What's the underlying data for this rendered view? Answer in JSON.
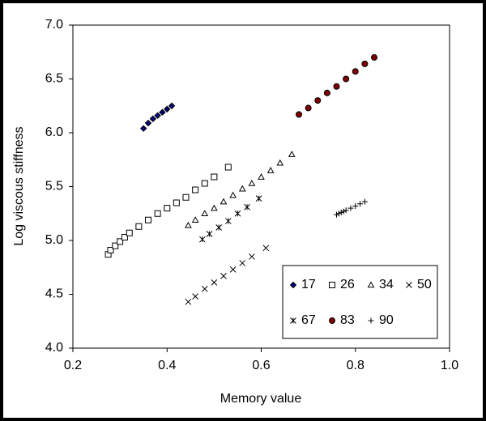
{
  "chart_data": {
    "type": "scatter",
    "x_label": "Memory value",
    "y_label": "Log viscous stiffness",
    "xlim": [
      0.2,
      1
    ],
    "xticks": [
      0.2,
      0.4,
      0.6,
      0.8,
      {
        "value": 1,
        "label": "1.0"
      }
    ],
    "ylim": [
      4,
      7
    ],
    "yticks": [
      {
        "value": 4,
        "label": "4.0"
      },
      4.5,
      {
        "value": 5,
        "label": "5.0"
      },
      5.5,
      {
        "value": 6,
        "label": "6.0"
      },
      6.5,
      {
        "value": 7,
        "label": "7.0"
      }
    ],
    "grid": false,
    "legend": "lower right",
    "series": [
      {
        "name": "17",
        "color": "#000080",
        "marker": "diamond",
        "x": [
          0.35,
          0.36,
          0.37,
          0.38,
          0.39,
          0.4,
          0.41
        ],
        "values": [
          6.04,
          6.09,
          6.13,
          6.16,
          6.19,
          6.22,
          6.25
        ]
      },
      {
        "name": "26",
        "color": "#000000",
        "marker": "square",
        "x": [
          0.275,
          0.28,
          0.29,
          0.3,
          0.31,
          0.32,
          0.34,
          0.36,
          0.38,
          0.4,
          0.42,
          0.44,
          0.46,
          0.48,
          0.5,
          0.53
        ],
        "values": [
          4.87,
          4.91,
          4.95,
          4.99,
          5.03,
          5.07,
          5.13,
          5.19,
          5.25,
          5.3,
          5.35,
          5.4,
          5.47,
          5.53,
          5.59,
          5.68
        ]
      },
      {
        "name": "34",
        "color": "#000000",
        "marker": "triangle",
        "x": [
          0.445,
          0.46,
          0.48,
          0.5,
          0.52,
          0.54,
          0.56,
          0.58,
          0.6,
          0.62,
          0.64,
          0.665
        ],
        "values": [
          5.14,
          5.19,
          5.25,
          5.3,
          5.36,
          5.42,
          5.48,
          5.53,
          5.59,
          5.65,
          5.72,
          5.8
        ]
      },
      {
        "name": "50",
        "color": "#000000",
        "marker": "x",
        "x": [
          0.445,
          0.46,
          0.48,
          0.5,
          0.52,
          0.54,
          0.56,
          0.58,
          0.61
        ],
        "values": [
          4.43,
          4.48,
          4.55,
          4.61,
          4.67,
          4.73,
          4.79,
          4.85,
          4.93
        ]
      },
      {
        "name": "67",
        "color": "#000000",
        "marker": "asterisk",
        "x": [
          0.475,
          0.49,
          0.51,
          0.53,
          0.55,
          0.57,
          0.595
        ],
        "values": [
          5.01,
          5.06,
          5.12,
          5.18,
          5.25,
          5.31,
          5.39
        ]
      },
      {
        "name": "83",
        "color": "#800000",
        "marker": "circle",
        "x": [
          0.68,
          0.7,
          0.72,
          0.74,
          0.76,
          0.78,
          0.8,
          0.82,
          0.84
        ],
        "values": [
          6.17,
          6.23,
          6.3,
          6.37,
          6.43,
          6.5,
          6.57,
          6.64,
          6.7
        ]
      },
      {
        "name": "90",
        "color": "#000000",
        "marker": "plus",
        "x": [
          0.76,
          0.765,
          0.77,
          0.775,
          0.78,
          0.79,
          0.8,
          0.81,
          0.82
        ],
        "values": [
          5.24,
          5.25,
          5.26,
          5.27,
          5.28,
          5.3,
          5.32,
          5.34,
          5.36
        ]
      }
    ]
  }
}
